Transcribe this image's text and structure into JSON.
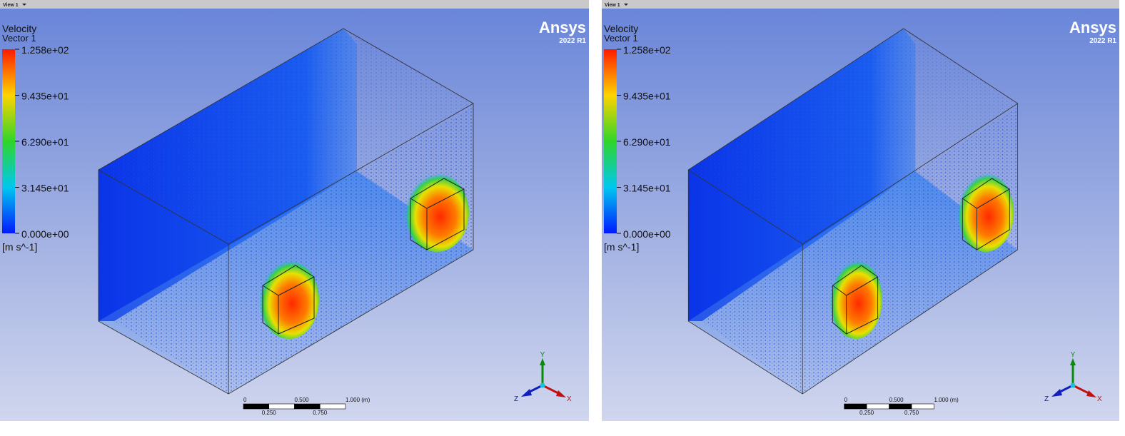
{
  "views": [
    {
      "header": "View 1",
      "legend": {
        "title": "Velocity",
        "subtitle": "Vector 1",
        "labels": [
          "1.258e+02",
          "9.435e+01",
          "6.290e+01",
          "3.145e+01",
          "0.000e+00"
        ],
        "unit": "[m s^-1]"
      },
      "logo": {
        "name": "Ansys",
        "version": "2022 R1"
      },
      "scale_bar": {
        "top_labels": [
          "0",
          "0.500",
          "1.000 (m)"
        ],
        "bottom_labels": [
          "0.250",
          "0.750"
        ]
      },
      "triad": {
        "y": "Y",
        "z": "Z",
        "x": "X"
      }
    },
    {
      "header": "View 1",
      "legend": {
        "title": "Velocity",
        "subtitle": "Vector 1",
        "labels": [
          "1.258e+02",
          "9.435e+01",
          "6.290e+01",
          "3.145e+01",
          "0.000e+00"
        ],
        "unit": "[m s^-1]"
      },
      "logo": {
        "name": "Ansys",
        "version": "2022 R1"
      },
      "scale_bar": {
        "top_labels": [
          "0",
          "0.500",
          "1.000 (m)"
        ],
        "bottom_labels": [
          "0.250",
          "0.750"
        ]
      },
      "triad": {
        "y": "Y",
        "z": "Z",
        "x": "X"
      }
    }
  ]
}
